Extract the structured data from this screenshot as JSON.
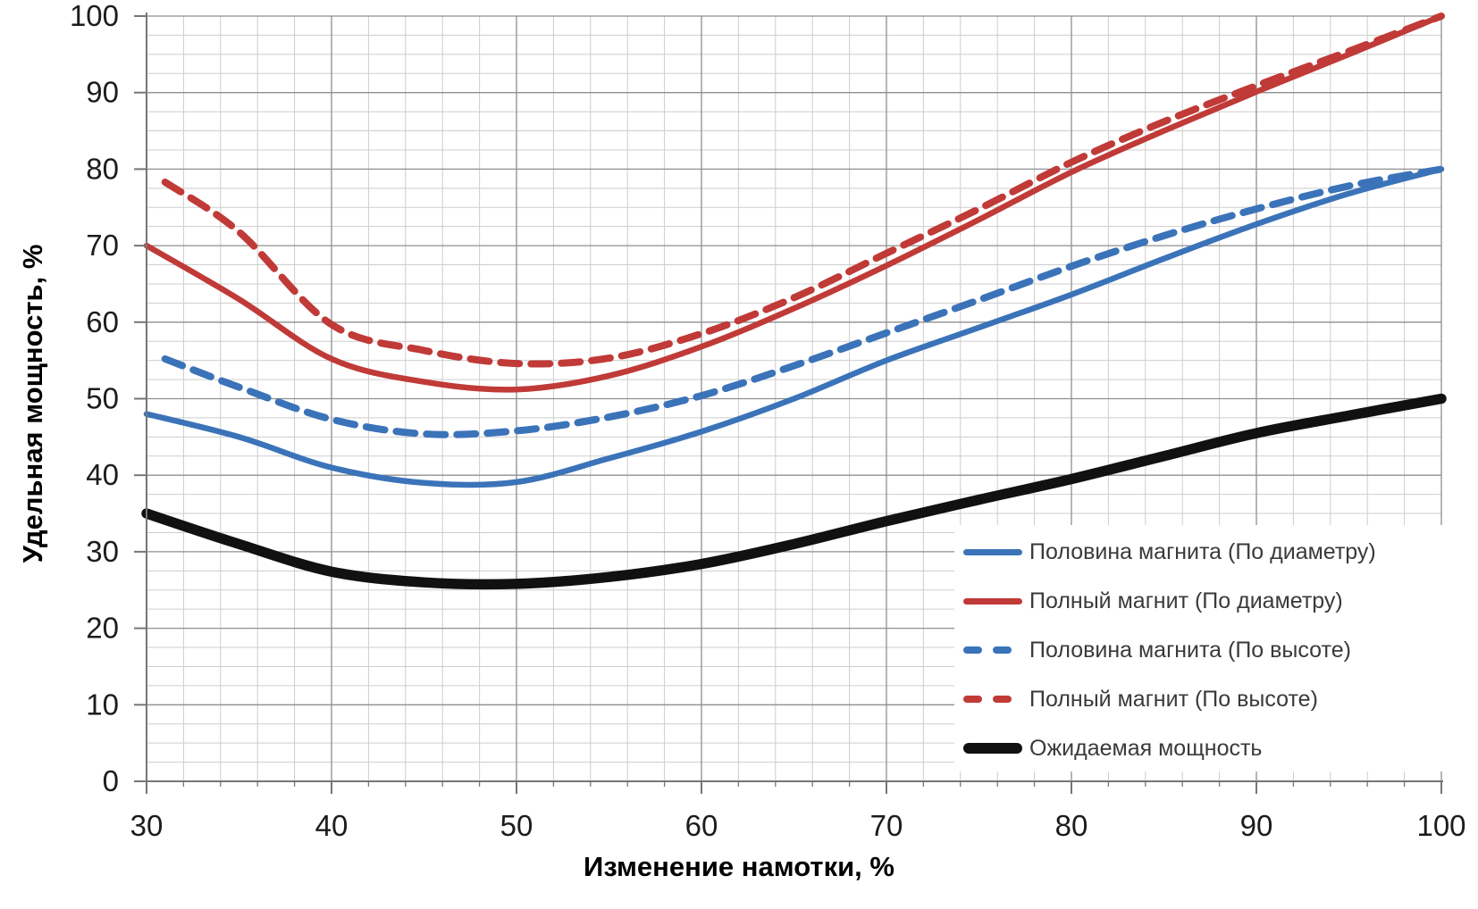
{
  "chart_data": {
    "type": "line",
    "xlabel": "Изменение намотки, %",
    "ylabel": "Удельная мощность, %",
    "x_axis": {
      "min": 30,
      "max": 100,
      "major_step": 10,
      "minor_step": 2,
      "tick_labels": [
        "30",
        "40",
        "50",
        "60",
        "70",
        "80",
        "90",
        "100"
      ]
    },
    "y_axis": {
      "min": 0,
      "max": 100,
      "major_step": 10,
      "minor_step": 2.5,
      "tick_labels": [
        "0",
        "10",
        "20",
        "30",
        "40",
        "50",
        "60",
        "70",
        "80",
        "90",
        "100"
      ]
    },
    "grid": "major-and-minor",
    "legend_position": "inside-bottom-right",
    "colors": {
      "blue": "#3b73b9",
      "red": "#c03a37",
      "black": "#111111",
      "grid_minor": "#cdcdcd",
      "grid_major": "#8f8f8f",
      "axis": "#767676"
    },
    "series": [
      {
        "id": "half-magnet-diameter",
        "label": "Половина магнита (По диаметру)",
        "color": "#3b73b9",
        "style": "solid",
        "width": 6.5,
        "x": [
          30,
          35,
          40,
          45,
          50,
          55,
          60,
          65,
          70,
          75,
          80,
          85,
          90,
          95,
          100
        ],
        "y": [
          48.0,
          45.0,
          41.0,
          39.0,
          39.1,
          42.2,
          45.7,
          50.0,
          55.0,
          59.3,
          63.6,
          68.3,
          72.8,
          76.8,
          80.0
        ]
      },
      {
        "id": "full-magnet-diameter",
        "label": "Полный магнит (По диаметру)",
        "color": "#c03a37",
        "style": "solid",
        "width": 6.5,
        "x": [
          30,
          35,
          40,
          45,
          50,
          55,
          60,
          65,
          70,
          75,
          80,
          85,
          90,
          95,
          100
        ],
        "y": [
          70.0,
          63.0,
          55.2,
          52.2,
          51.2,
          53.0,
          56.8,
          61.8,
          67.4,
          73.4,
          79.6,
          85.0,
          90.1,
          95.0,
          100.0
        ]
      },
      {
        "id": "half-magnet-height",
        "label": "Половина магнита (По высоте)",
        "color": "#3b73b9",
        "style": "dashed",
        "width": 8,
        "x": [
          31,
          35,
          40,
          45,
          50,
          55,
          60,
          65,
          70,
          75,
          80,
          85,
          90,
          95,
          100
        ],
        "y": [
          55.2,
          51.5,
          47.3,
          45.4,
          45.8,
          47.6,
          50.4,
          54.3,
          58.6,
          62.9,
          67.3,
          71.3,
          74.8,
          77.8,
          80.0
        ]
      },
      {
        "id": "full-magnet-height",
        "label": "Полный магнит (По высоте)",
        "color": "#c03a37",
        "style": "dashed",
        "width": 8,
        "x": [
          31,
          35,
          40,
          45,
          50,
          55,
          60,
          65,
          70,
          75,
          80,
          85,
          90,
          95,
          100
        ],
        "y": [
          78.3,
          71.8,
          59.7,
          56.3,
          54.6,
          55.3,
          58.5,
          63.2,
          69.0,
          74.8,
          80.9,
          86.2,
          90.9,
          95.4,
          100.0
        ]
      },
      {
        "id": "expected-power",
        "label": "Ожидаемая мощность",
        "color": "#111111",
        "style": "solid",
        "width": 11.5,
        "x": [
          30,
          35,
          40,
          45,
          50,
          55,
          60,
          65,
          70,
          75,
          80,
          85,
          90,
          95,
          100
        ],
        "y": [
          35.0,
          31.0,
          27.4,
          26.0,
          25.8,
          26.7,
          28.4,
          31.0,
          34.0,
          36.8,
          39.5,
          42.5,
          45.5,
          47.8,
          50.0
        ]
      }
    ]
  }
}
